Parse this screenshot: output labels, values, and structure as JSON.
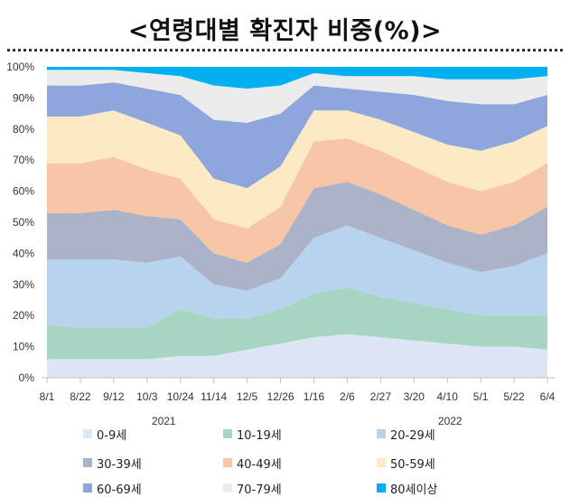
{
  "chart_data": {
    "type": "area",
    "stacked": true,
    "percent": true,
    "title": "<연령대별 확진자 비중(%)>",
    "x_ticks": [
      "8/1",
      "8/22",
      "9/12",
      "10/3",
      "10/24",
      "11/14",
      "12/5",
      "12/26",
      "1/16",
      "2/6",
      "2/27",
      "3/20",
      "4/10",
      "5/1",
      "5/22",
      "6/4"
    ],
    "years": [
      "2021",
      "2022"
    ],
    "y_ticks": [
      "0%",
      "10%",
      "20%",
      "30%",
      "40%",
      "50%",
      "60%",
      "70%",
      "80%",
      "90%",
      "100%"
    ],
    "ylim": [
      0,
      100
    ],
    "grid": false,
    "legend_position": "bottom",
    "x": [
      "8/1",
      "8/22",
      "9/12",
      "10/3",
      "10/24",
      "11/14",
      "12/5",
      "12/26",
      "1/16",
      "2/6",
      "2/27",
      "3/20",
      "4/10",
      "5/1",
      "5/22",
      "6/4"
    ],
    "series": [
      {
        "name": "0-9세",
        "color": "#dce6f5",
        "values": [
          6,
          6,
          6,
          6,
          7,
          7,
          9,
          11,
          13,
          14,
          13,
          12,
          11,
          10,
          10,
          9
        ]
      },
      {
        "name": "10-19세",
        "color": "#a8d5c2",
        "values": [
          11,
          10,
          10,
          10,
          15,
          12,
          10,
          11,
          14,
          15,
          13,
          12,
          11,
          10,
          10,
          11
        ]
      },
      {
        "name": "20-29세",
        "color": "#b8d3ee",
        "values": [
          21,
          22,
          22,
          21,
          17,
          11,
          9,
          10,
          18,
          20,
          19,
          17,
          15,
          14,
          16,
          20
        ]
      },
      {
        "name": "30-39세",
        "color": "#aab3c8",
        "values": [
          15,
          15,
          16,
          15,
          12,
          10,
          9,
          11,
          16,
          14,
          14,
          13,
          12,
          12,
          13,
          15
        ]
      },
      {
        "name": "40-49세",
        "color": "#f6c6a6",
        "values": [
          16,
          16,
          17,
          15,
          13,
          11,
          11,
          12,
          15,
          14,
          14,
          14,
          14,
          14,
          14,
          14
        ]
      },
      {
        "name": "50-59세",
        "color": "#fde9c4",
        "values": [
          15,
          15,
          15,
          15,
          14,
          13,
          13,
          13,
          10,
          9,
          10,
          11,
          12,
          13,
          13,
          12
        ]
      },
      {
        "name": "60-69세",
        "color": "#8ea6dc",
        "values": [
          10,
          10,
          9,
          11,
          13,
          19,
          21,
          17,
          8,
          7,
          9,
          12,
          14,
          15,
          12,
          10
        ]
      },
      {
        "name": "70-79세",
        "color": "#ececec",
        "values": [
          5,
          5,
          4,
          5,
          6,
          11,
          11,
          9,
          4,
          4,
          5,
          6,
          7,
          8,
          8,
          6
        ]
      },
      {
        "name": "80세이상",
        "color": "#00b0f0",
        "values": [
          1,
          1,
          1,
          2,
          3,
          6,
          7,
          6,
          2,
          3,
          3,
          3,
          4,
          4,
          4,
          3
        ]
      }
    ]
  }
}
